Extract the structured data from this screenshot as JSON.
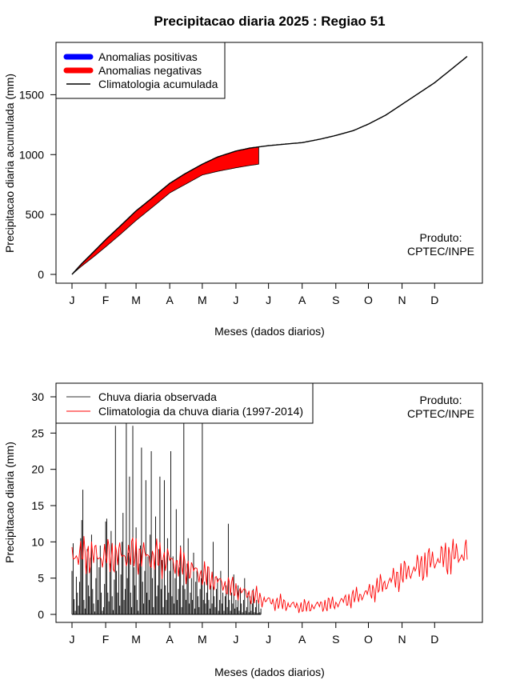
{
  "title": "Precipitacao diaria 2025 : Regiao 51",
  "produto": {
    "line1": "Produto:",
    "line2": "CPTEC/INPE"
  },
  "colors": {
    "positive": "#0000ff",
    "negative": "#ff0000",
    "clim_cum": "#000000",
    "obs": "#000000",
    "clim_daily": "#ff0000"
  },
  "chart_data": [
    {
      "type": "area",
      "ylabel": "Precipitacao diaria acumulada (mm)",
      "xlabel": "Meses (dados diarios)",
      "month_labels": [
        "J",
        "F",
        "M",
        "A",
        "M",
        "J",
        "J",
        "A",
        "S",
        "O",
        "N",
        "D"
      ],
      "month_start_day": [
        1,
        32,
        60,
        91,
        121,
        152,
        182,
        213,
        244,
        274,
        305,
        335
      ],
      "yticks": [
        0,
        500,
        1000,
        1500
      ],
      "ylim": [
        0,
        1850
      ],
      "xlim": [
        1,
        365
      ],
      "legend": {
        "position": "top-left",
        "entries": [
          {
            "label": "Anomalias positivas",
            "series": "positive"
          },
          {
            "label": "Anomalias negativas",
            "series": "negative"
          },
          {
            "label": "Climatologia acumulada",
            "series": "clim_cum"
          }
        ]
      },
      "climatology_cumulative": {
        "x": [
          1,
          10,
          20,
          32,
          45,
          60,
          75,
          91,
          105,
          121,
          135,
          152,
          165,
          182,
          200,
          213,
          230,
          244,
          260,
          274,
          290,
          305,
          320,
          335,
          350,
          365
        ],
        "y": [
          0,
          90,
          180,
          290,
          400,
          530,
          640,
          760,
          840,
          920,
          980,
          1030,
          1055,
          1075,
          1090,
          1100,
          1130,
          1160,
          1200,
          1255,
          1330,
          1420,
          1510,
          1600,
          1710,
          1820
        ]
      },
      "observed_cumulative": {
        "x": [
          1,
          10,
          20,
          32,
          45,
          60,
          75,
          91,
          105,
          121,
          135,
          152,
          165,
          173
        ],
        "y": [
          0,
          70,
          140,
          230,
          330,
          450,
          560,
          680,
          750,
          830,
          860,
          890,
          910,
          920
        ]
      }
    },
    {
      "type": "line",
      "ylabel": "Precipitacao diaria (mm)",
      "xlabel": "Meses (dados diarios)",
      "month_labels": [
        "J",
        "F",
        "M",
        "A",
        "M",
        "J",
        "J",
        "A",
        "S",
        "O",
        "N",
        "D"
      ],
      "month_start_day": [
        1,
        32,
        60,
        91,
        121,
        152,
        182,
        213,
        244,
        274,
        305,
        335
      ],
      "yticks": [
        0,
        5,
        10,
        15,
        20,
        25,
        30
      ],
      "ylim": [
        0,
        30.5
      ],
      "xlim": [
        1,
        365
      ],
      "legend": {
        "position": "top-left",
        "entries": [
          {
            "label": "Chuva diaria observada",
            "series": "obs"
          },
          {
            "label": "Climatologia da chuva diaria (1997-2014)",
            "series": "clim_daily"
          }
        ]
      },
      "observed_daily": [
        6,
        9.8,
        2.1,
        0.5,
        5.2,
        3.0,
        1.2,
        4.5,
        10.5,
        13.0,
        17.2,
        2.0,
        0.8,
        6.5,
        9.0,
        4.0,
        2.5,
        7.8,
        11.0,
        3.5,
        1.5,
        0.4,
        5.0,
        8.0,
        2.0,
        6.5,
        9.5,
        3.0,
        0.5,
        1.0,
        4.2,
        12.8,
        13.2,
        3.0,
        1.8,
        7.0,
        11.5,
        2.5,
        0.6,
        4.8,
        26.0,
        6.0,
        3.0,
        9.0,
        1.2,
        5.5,
        10.0,
        14.0,
        2.0,
        3.5,
        27.0,
        5.0,
        8.5,
        19.0,
        3.0,
        1.0,
        26.0,
        6.5,
        4.0,
        12.0,
        2.0,
        0.5,
        7.0,
        9.5,
        23.0,
        4.5,
        1.5,
        6.0,
        18.5,
        3.0,
        8.0,
        2.0,
        11.0,
        22.5,
        5.0,
        1.0,
        6.5,
        13.5,
        2.5,
        4.0,
        9.0,
        19.0,
        3.5,
        7.5,
        1.0,
        18.5,
        4.0,
        2.0,
        10.5,
        3.0,
        6.0,
        22.5,
        2.5,
        8.0,
        1.5,
        5.0,
        14.5,
        2.0,
        3.5,
        6.5,
        9.5,
        1.0,
        4.0,
        27.0,
        3.5,
        2.0,
        7.0,
        10.5,
        1.5,
        3.0,
        5.0,
        2.0,
        8.5,
        0.8,
        4.5,
        6.0,
        2.5,
        1.0,
        3.5,
        5.0,
        27.0,
        2.0,
        4.5,
        1.5,
        3.0,
        6.5,
        2.0,
        0.8,
        4.0,
        1.5,
        10.0,
        2.5,
        1.0,
        3.5,
        5.0,
        0.5,
        2.0,
        6.0,
        1.5,
        3.0,
        0.5,
        2.5,
        4.0,
        1.0,
        12.5,
        2.0,
        0.5,
        3.0,
        1.5,
        5.5,
        0.8,
        2.0,
        1.0,
        4.0,
        0.5,
        3.5,
        1.5,
        0.3,
        2.0,
        5.0,
        0.5,
        1.0,
        3.0,
        0.3,
        2.5,
        0.5,
        1.5,
        3.5,
        0.3,
        1.0,
        2.0,
        0.2,
        1.5,
        0.3,
        0.8
      ]
    }
  ]
}
